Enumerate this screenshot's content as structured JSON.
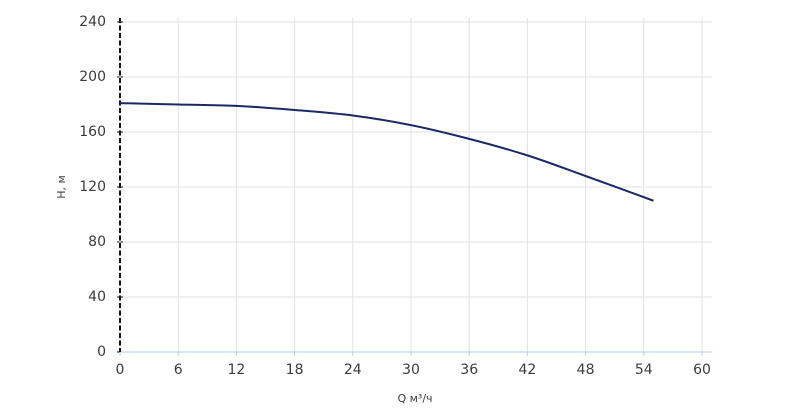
{
  "chart_data": {
    "type": "line",
    "x_label": "Q м³/ч",
    "y_label": "H, м",
    "x": [
      0,
      6,
      12,
      18,
      24,
      30,
      36,
      42,
      48,
      55
    ],
    "series": [
      {
        "color": "#1b2a66",
        "values": [
          181,
          180,
          179,
          176,
          172,
          165,
          155,
          143,
          128,
          110
        ]
      }
    ],
    "xlim": [
      0,
      60
    ],
    "xticks": [
      0,
      6,
      12,
      18,
      24,
      30,
      36,
      42,
      48,
      54,
      60
    ],
    "ylim": [
      0,
      240
    ],
    "yticks": [
      0,
      40,
      80,
      120,
      160,
      200,
      240
    ],
    "grid": true
  }
}
